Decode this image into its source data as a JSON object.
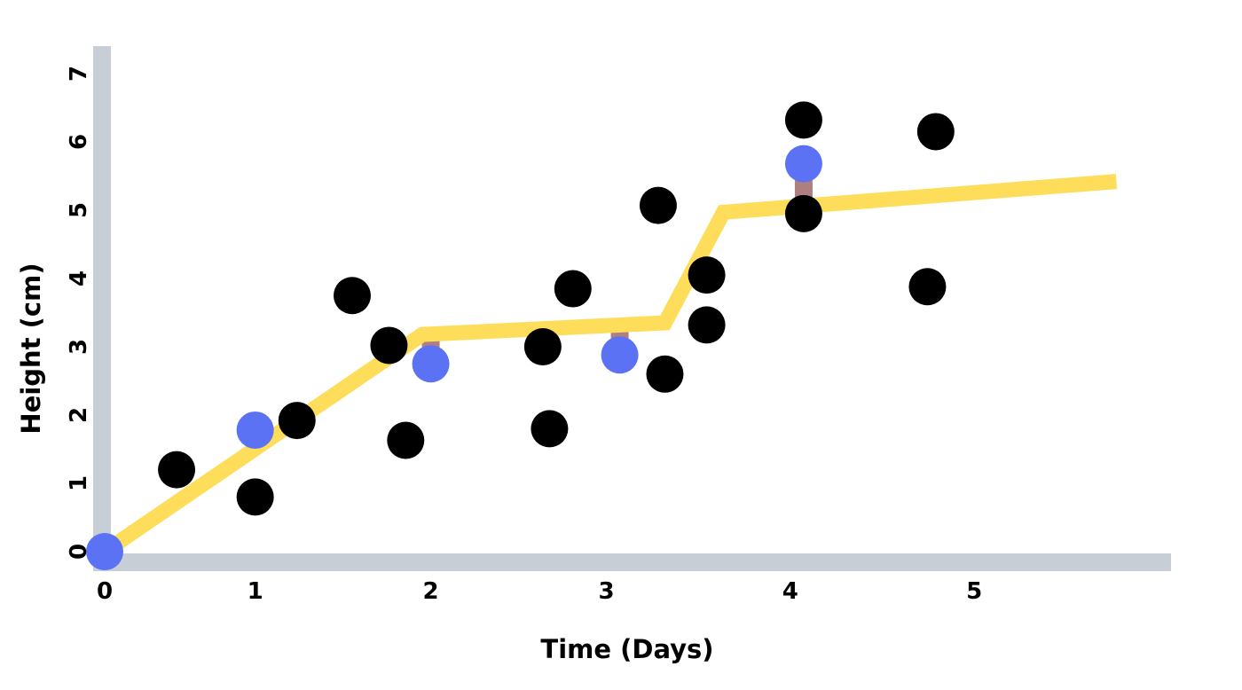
{
  "chart_data": {
    "type": "scatter",
    "title": "",
    "xlabel": "Time (Days)",
    "ylabel": "Height (cm)",
    "xlim": [
      0,
      6.5
    ],
    "ylim": [
      0,
      7.5
    ],
    "x_ticks": [
      "0",
      "1",
      "2",
      "3",
      "4",
      "5"
    ],
    "y_ticks": [
      "0",
      "1",
      "2",
      "3",
      "4",
      "5",
      "6",
      "7"
    ],
    "x_tick_values": [
      0.0,
      0.9,
      1.95,
      3.0,
      4.1,
      5.2
    ],
    "y_tick_values": [
      0,
      1,
      2,
      3,
      4,
      5,
      6,
      7
    ],
    "colors": {
      "axis": "#c8ced6",
      "observed": "#000000",
      "fitted": "#5b72f5",
      "trend": "#fedd5a",
      "residual": "#ae7f7f"
    },
    "series": [
      {
        "name": "observed",
        "points": [
          {
            "x": 0.43,
            "y": 1.2
          },
          {
            "x": 0.9,
            "y": 0.8
          },
          {
            "x": 1.15,
            "y": 1.92
          },
          {
            "x": 1.48,
            "y": 3.75
          },
          {
            "x": 1.7,
            "y": 3.02
          },
          {
            "x": 1.8,
            "y": 1.63
          },
          {
            "x": 2.62,
            "y": 3.0
          },
          {
            "x": 2.66,
            "y": 1.8
          },
          {
            "x": 2.8,
            "y": 3.85
          },
          {
            "x": 3.31,
            "y": 5.07
          },
          {
            "x": 3.35,
            "y": 2.6
          },
          {
            "x": 3.6,
            "y": 4.05
          },
          {
            "x": 3.6,
            "y": 3.32
          },
          {
            "x": 4.18,
            "y": 6.32
          },
          {
            "x": 4.18,
            "y": 4.95
          },
          {
            "x": 4.92,
            "y": 3.88
          },
          {
            "x": 4.97,
            "y": 6.15
          }
        ]
      },
      {
        "name": "fitted",
        "points": [
          {
            "x": 0.0,
            "y": 0.0
          },
          {
            "x": 0.9,
            "y": 1.78
          },
          {
            "x": 1.95,
            "y": 2.75
          },
          {
            "x": 3.08,
            "y": 2.88
          },
          {
            "x": 4.18,
            "y": 5.68
          }
        ]
      },
      {
        "name": "trend",
        "points": [
          {
            "x": 0.0,
            "y": 0.0
          },
          {
            "x": 1.9,
            "y": 3.18
          },
          {
            "x": 3.35,
            "y": 3.35
          },
          {
            "x": 3.7,
            "y": 4.97
          },
          {
            "x": 6.05,
            "y": 5.42
          }
        ]
      }
    ],
    "residuals": [
      {
        "x": 1.95,
        "y1": 2.75,
        "y2": 3.2
      },
      {
        "x": 3.08,
        "y1": 2.88,
        "y2": 3.3
      },
      {
        "x": 4.18,
        "y1": 5.68,
        "y2": 5.1
      }
    ]
  }
}
